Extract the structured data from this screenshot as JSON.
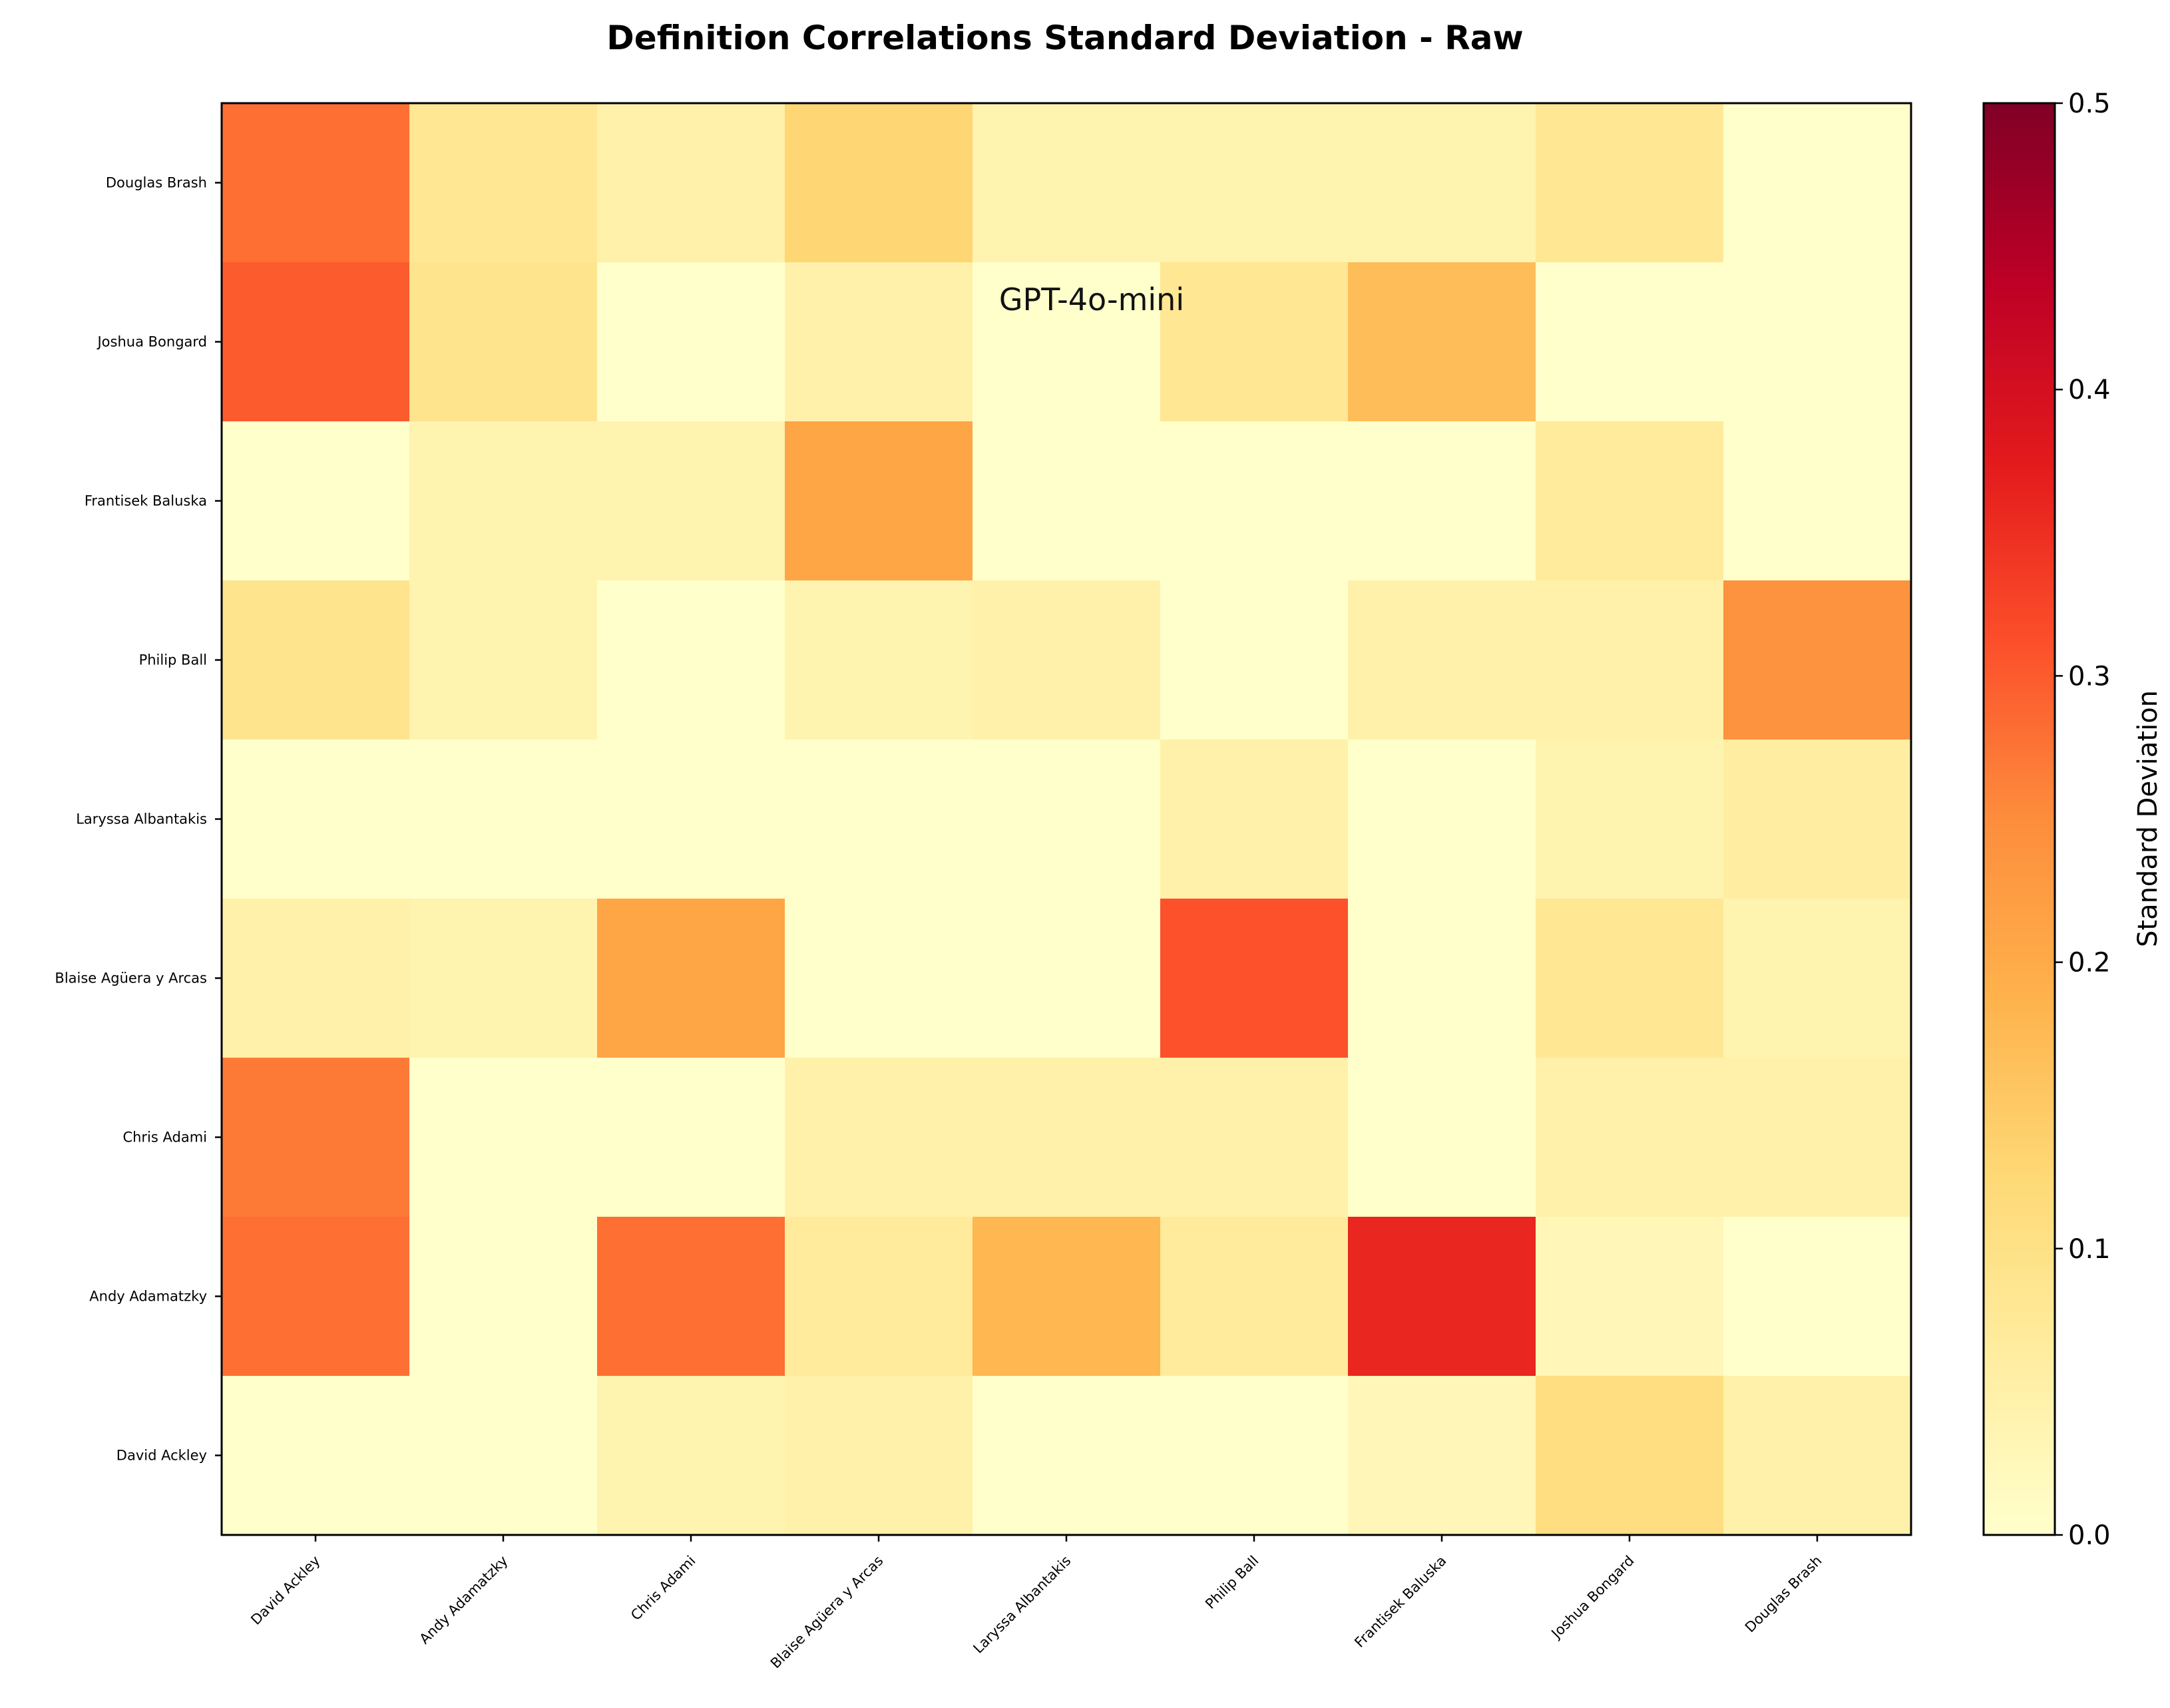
{
  "chart_data": {
    "type": "heatmap",
    "title": "Definition Correlations Standard Deviation - Raw",
    "annotation": "GPT-4o-mini",
    "x_labels": [
      "David Ackley",
      "Andy Adamatzky",
      "Chris Adami",
      "Blaise Agüera y Arcas",
      "Laryssa Albantakis",
      "Philip Ball",
      "Frantisek Baluska",
      "Joshua Bongard",
      "Douglas Brash"
    ],
    "y_labels_top_to_bottom": [
      "Douglas Brash",
      "Joshua Bongard",
      "Frantisek Baluska",
      "Philip Ball",
      "Laryssa Albantakis",
      "Blaise Agüera y Arcas",
      "Chris Adami",
      "Andy Adamatzky",
      "David Ackley"
    ],
    "values_top_to_bottom": [
      [
        0.28,
        0.08,
        0.05,
        0.13,
        0.04,
        0.04,
        0.04,
        0.08,
        0.0
      ],
      [
        0.3,
        0.09,
        0.0,
        0.05,
        0.0,
        0.08,
        0.17,
        0.0,
        0.0
      ],
      [
        0.0,
        0.04,
        0.04,
        0.21,
        0.0,
        0.0,
        0.0,
        0.07,
        0.0
      ],
      [
        0.09,
        0.04,
        0.0,
        0.04,
        0.05,
        0.0,
        0.05,
        0.05,
        0.24
      ],
      [
        0.0,
        0.0,
        0.0,
        0.0,
        0.0,
        0.05,
        0.0,
        0.04,
        0.06
      ],
      [
        0.05,
        0.04,
        0.21,
        0.0,
        0.0,
        0.31,
        0.0,
        0.08,
        0.04
      ],
      [
        0.27,
        0.0,
        0.0,
        0.05,
        0.05,
        0.05,
        0.0,
        0.05,
        0.05
      ],
      [
        0.28,
        0.0,
        0.28,
        0.07,
        0.18,
        0.07,
        0.36,
        0.03,
        0.0
      ],
      [
        0.0,
        0.0,
        0.04,
        0.05,
        0.0,
        0.0,
        0.03,
        0.11,
        0.05
      ]
    ],
    "colorbar": {
      "label": "Standard Deviation",
      "range": [
        0.0,
        0.5
      ],
      "ticks": [
        "0.0",
        "0.1",
        "0.2",
        "0.3",
        "0.4",
        "0.5"
      ],
      "colormap": "YlOrRd"
    }
  }
}
